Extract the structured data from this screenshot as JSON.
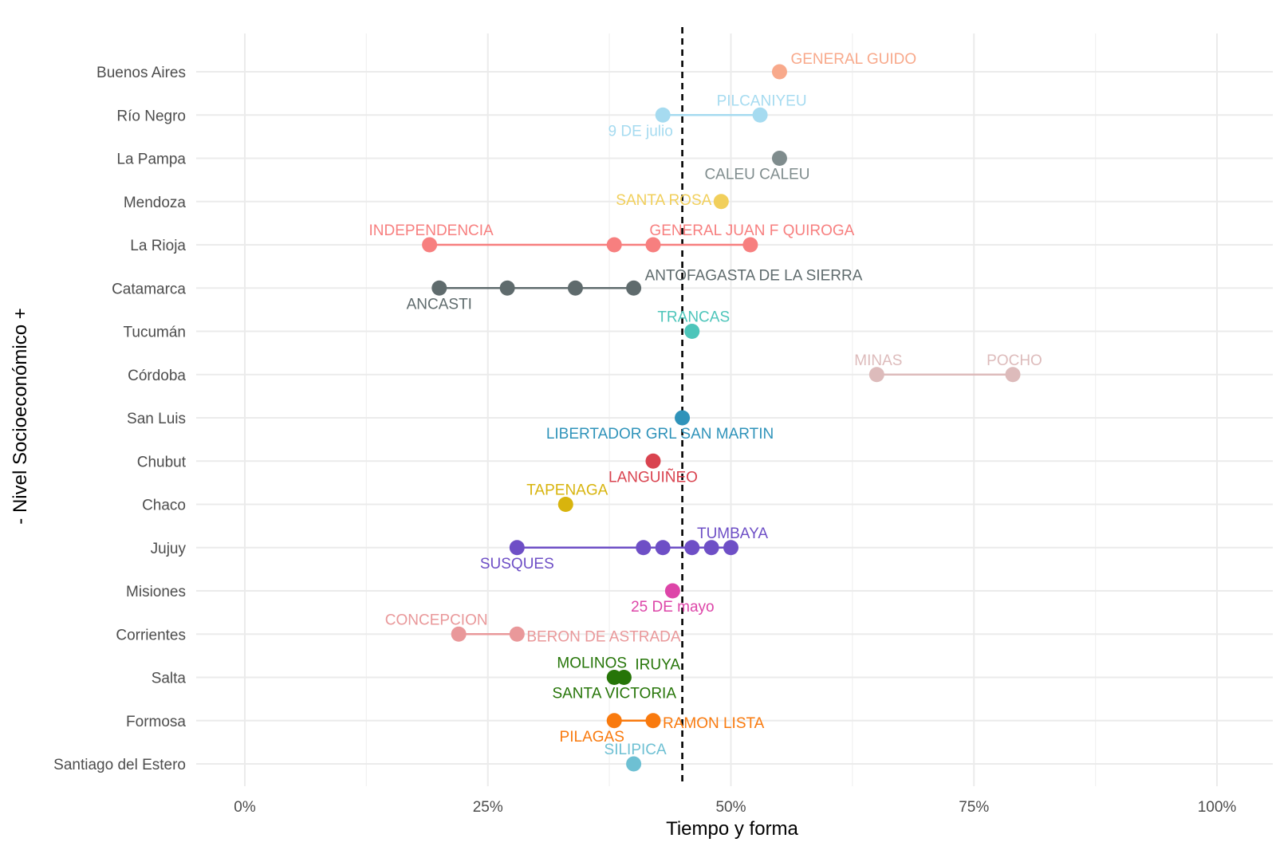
{
  "chart_data": {
    "type": "scatter",
    "xlabel": "Tiempo y forma",
    "ylabel": "- Nivel Socioeconómico +",
    "xlim": [
      -0.05,
      1.05
    ],
    "x_ticks": [
      {
        "value": 0,
        "label": "0%"
      },
      {
        "value": 0.25,
        "label": "25%"
      },
      {
        "value": 0.5,
        "label": "50%"
      },
      {
        "value": 0.75,
        "label": "75%"
      },
      {
        "value": 1,
        "label": "100%"
      }
    ],
    "reference_line": {
      "x": 0.45,
      "style": "dashed"
    },
    "grid": true,
    "legend": "none",
    "categories": [
      "Buenos Aires",
      "Río Negro",
      "La Pampa",
      "Mendoza",
      "La Rioja",
      "Catamarca",
      "Tucumán",
      "Córdoba",
      "San Luis",
      "Chubut",
      "Chaco",
      "Jujuy",
      "Misiones",
      "Corrientes",
      "Salta",
      "Formosa",
      "Santiago del Estero"
    ],
    "series": [
      {
        "category": "Buenos Aires",
        "color": "#F8A98B",
        "points": [
          0.55
        ],
        "labels": [
          {
            "text": "GENERAL GUIDO",
            "x": 0.55,
            "pos": "above-right"
          }
        ]
      },
      {
        "category": "Río Negro",
        "color": "#A6DBF0",
        "points": [
          0.43,
          0.53
        ],
        "labels": [
          {
            "text": "PILCANIYEU",
            "x": 0.53,
            "pos": "above"
          },
          {
            "text": "9 DE julio",
            "x": 0.43,
            "pos": "below-left"
          }
        ]
      },
      {
        "category": "La Pampa",
        "color": "#7F8C8D",
        "points": [
          0.55
        ],
        "labels": [
          {
            "text": "CALEU CALEU",
            "x": 0.55,
            "pos": "below-left"
          }
        ]
      },
      {
        "category": "Mendoza",
        "color": "#F1CF5B",
        "points": [
          0.49
        ],
        "labels": [
          {
            "text": "SANTA ROSA",
            "x": 0.49,
            "pos": "left"
          }
        ]
      },
      {
        "category": "La Rioja",
        "color": "#F77F7F",
        "points": [
          0.19,
          0.38,
          0.42,
          0.52
        ],
        "labels": [
          {
            "text": "INDEPENDENCIA",
            "x": 0.19,
            "pos": "above"
          },
          {
            "text": "GENERAL JUAN F QUIROGA",
            "x": 0.52,
            "pos": "above"
          }
        ]
      },
      {
        "category": "Catamarca",
        "color": "#5F6B6D",
        "points": [
          0.2,
          0.27,
          0.34,
          0.4
        ],
        "labels": [
          {
            "text": "ANTOFAGASTA DE LA SIERRA",
            "x": 0.4,
            "pos": "above-right"
          },
          {
            "text": "ANCASTI",
            "x": 0.2,
            "pos": "below"
          }
        ]
      },
      {
        "category": "Tucumán",
        "color": "#4DC5BA",
        "points": [
          0.46
        ],
        "labels": [
          {
            "text": "TRANCAS",
            "x": 0.46,
            "pos": "above"
          }
        ]
      },
      {
        "category": "Córdoba",
        "color": "#DDBBBB",
        "points": [
          0.65,
          0.79
        ],
        "labels": [
          {
            "text": "MINAS",
            "x": 0.65,
            "pos": "above"
          },
          {
            "text": "POCHO",
            "x": 0.79,
            "pos": "above"
          }
        ]
      },
      {
        "category": "San Luis",
        "color": "#2F93BA",
        "points": [
          0.45
        ],
        "labels": [
          {
            "text": "LIBERTADOR GRL SAN MARTIN",
            "x": 0.45,
            "pos": "below-left"
          }
        ]
      },
      {
        "category": "Chubut",
        "color": "#D9434F",
        "points": [
          0.42
        ],
        "labels": [
          {
            "text": "LANGUIÑEO",
            "x": 0.42,
            "pos": "below"
          }
        ]
      },
      {
        "category": "Chaco",
        "color": "#D8B40D",
        "points": [
          0.33
        ],
        "labels": [
          {
            "text": "TAPENAGA",
            "x": 0.33,
            "pos": "above"
          }
        ]
      },
      {
        "category": "Jujuy",
        "color": "#6E4FC6",
        "points": [
          0.28,
          0.41,
          0.43,
          0.46,
          0.48,
          0.5
        ],
        "labels": [
          {
            "text": "TUMBAYA",
            "x": 0.5,
            "pos": "above"
          },
          {
            "text": "SUSQUES",
            "x": 0.28,
            "pos": "below"
          }
        ]
      },
      {
        "category": "Misiones",
        "color": "#DD45A8",
        "points": [
          0.44
        ],
        "labels": [
          {
            "text": "25 DE mayo",
            "x": 0.44,
            "pos": "below"
          }
        ]
      },
      {
        "category": "Corrientes",
        "color": "#E9989A",
        "points": [
          0.22,
          0.28
        ],
        "labels": [
          {
            "text": "CONCEPCION",
            "x": 0.22,
            "pos": "above-left"
          },
          {
            "text": "BERON DE ASTRADA",
            "x": 0.28,
            "pos": "right"
          }
        ]
      },
      {
        "category": "Salta",
        "color": "#267508",
        "points": [
          0.38,
          0.39
        ],
        "labels": [
          {
            "text": "MOLINOS",
            "x": 0.38,
            "pos": "above-left"
          },
          {
            "text": "IRUYA",
            "x": 0.39,
            "pos": "above-right"
          },
          {
            "text": "SANTA VICTORIA",
            "x": 0.38,
            "pos": "below"
          }
        ]
      },
      {
        "category": "Formosa",
        "color": "#F97A0E",
        "points": [
          0.38,
          0.42
        ],
        "labels": [
          {
            "text": "RAMON LISTA",
            "x": 0.42,
            "pos": "right"
          },
          {
            "text": "PILAGAS",
            "x": 0.38,
            "pos": "below-left"
          }
        ]
      },
      {
        "category": "Santiago del Estero",
        "color": "#6EC0D3",
        "points": [
          0.4
        ],
        "labels": [
          {
            "text": "SILIPICA",
            "x": 0.4,
            "pos": "above"
          }
        ]
      }
    ]
  }
}
